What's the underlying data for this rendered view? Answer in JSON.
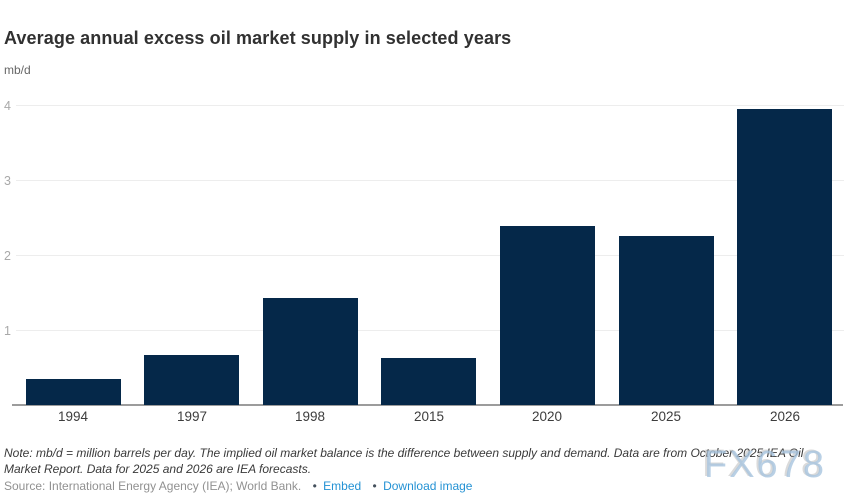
{
  "header": {
    "title": "Average annual excess oil market supply in selected years",
    "unit_label": "mb/d"
  },
  "chart_data": {
    "type": "bar",
    "title": "Average annual excess oil market supply in selected years",
    "xlabel": "",
    "ylabel": "mb/d",
    "categories": [
      "1994",
      "1997",
      "1998",
      "2015",
      "2020",
      "2025",
      "2026"
    ],
    "values": [
      0.35,
      0.67,
      1.43,
      0.62,
      2.39,
      2.26,
      3.94
    ],
    "ylim": [
      0,
      4.3
    ],
    "yticks": [
      1,
      2,
      3,
      4
    ],
    "bar_color": "#052849",
    "grid": true,
    "gridline_color": "#ededed",
    "axis_line_color": "#9c9c9c",
    "legend": false
  },
  "footer": {
    "note": "Note: mb/d = million barrels per day. The implied oil market balance is the difference between supply and demand. Data are from October 2025 IEA Oil Market Report. Data for 2025 and 2026 are IEA forecasts.",
    "source_text": "Source: International Energy Agency (IEA); World Bank.",
    "bullet": "•",
    "links": [
      {
        "label": "Embed"
      },
      {
        "label": "Download image"
      }
    ],
    "link_color": "#2492d4",
    "watermark": "FX678"
  }
}
